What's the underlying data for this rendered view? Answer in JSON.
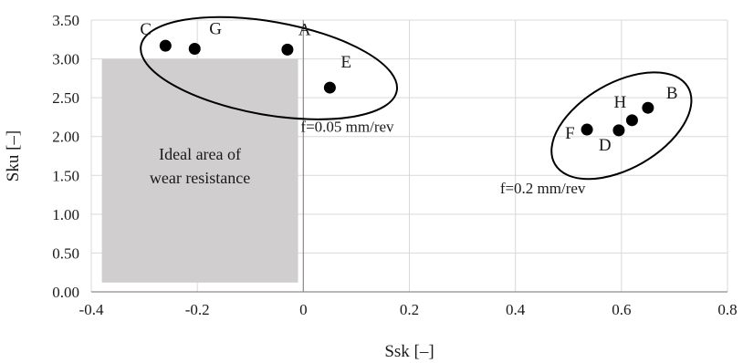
{
  "chart_data": {
    "type": "scatter",
    "xlabel": "Ssk [–]",
    "ylabel": "Sku [–]",
    "xlim": [
      -0.4,
      0.8
    ],
    "ylim": [
      0.0,
      3.5
    ],
    "x_ticks": [
      "-0.4",
      "-0.2",
      "0",
      "0.2",
      "0.4",
      "0.6",
      "0.8"
    ],
    "y_ticks": [
      "0.00",
      "0.50",
      "1.00",
      "1.50",
      "2.00",
      "2.50",
      "3.00",
      "3.50"
    ],
    "grid": "vertical and horizontal",
    "points": [
      {
        "label": "C",
        "x": -0.26,
        "y": 3.17
      },
      {
        "label": "G",
        "x": -0.205,
        "y": 3.13
      },
      {
        "label": "A",
        "x": -0.03,
        "y": 3.12
      },
      {
        "label": "E",
        "x": 0.05,
        "y": 2.63
      },
      {
        "label": "B",
        "x": 0.65,
        "y": 2.37
      },
      {
        "label": "H",
        "x": 0.62,
        "y": 2.21
      },
      {
        "label": "D",
        "x": 0.595,
        "y": 2.08
      },
      {
        "label": "F",
        "x": 0.535,
        "y": 2.09
      }
    ],
    "regions": [
      {
        "name": "ideal-area",
        "x0": -0.38,
        "x1": -0.01,
        "y0": 0.12,
        "y1": 3.0,
        "color": "#d0cece",
        "text_lines": [
          "Ideal area of",
          "wear resistance"
        ]
      }
    ],
    "clusters": [
      {
        "label": "f=0.05 mm/rev",
        "cx": -0.065,
        "cy": 2.88,
        "rx": 0.245,
        "ry": 0.6
      },
      {
        "label": "f=0.2 mm/rev",
        "cx": 0.6,
        "cy": 2.14,
        "rx": 0.145,
        "ry": 0.55
      }
    ],
    "colors": {
      "point": "#000000",
      "grid": "#d9d9d9",
      "axis": "#8c8c8c"
    }
  }
}
